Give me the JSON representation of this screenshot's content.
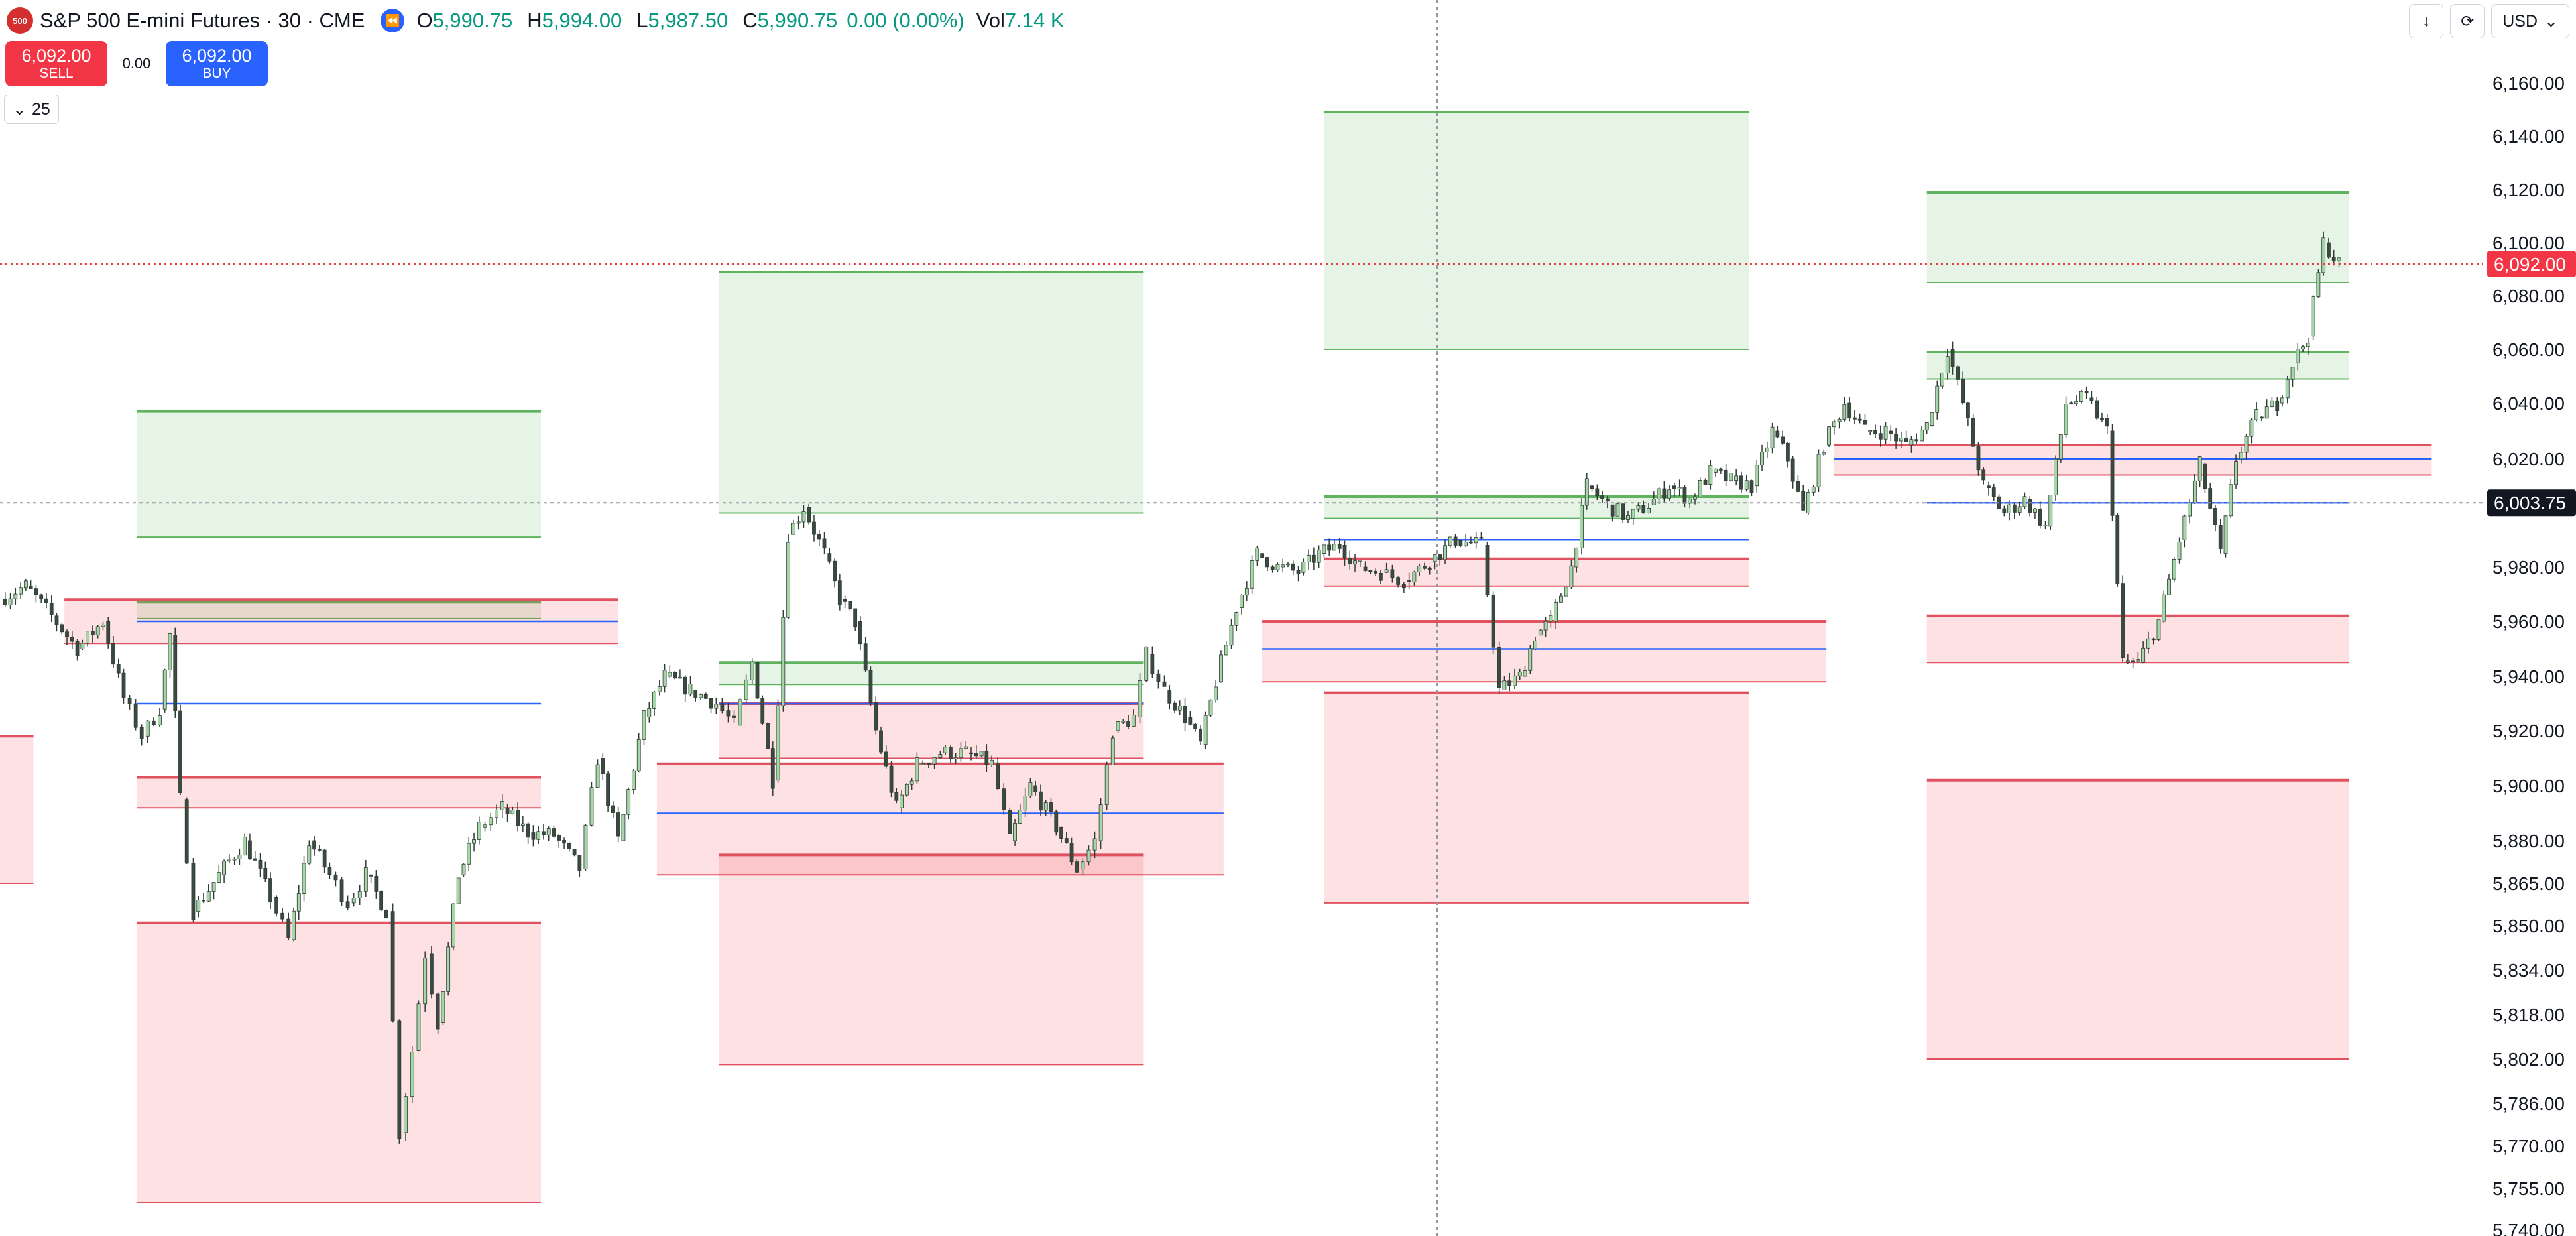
{
  "header": {
    "logo_text": "500",
    "title": "S&P 500 E-mini Futures · 30 · CME",
    "ohlc": [
      {
        "label": "O",
        "value": "5,990.75"
      },
      {
        "label": "H",
        "value": "5,994.00"
      },
      {
        "label": "L",
        "value": "5,987.50"
      },
      {
        "label": "C",
        "value": "5,990.75"
      }
    ],
    "change": "0.00 (0.00%)",
    "volume_label": "Vol",
    "volume_value": "7.14 K",
    "up_color": "#089981"
  },
  "trade": {
    "sell_price": "6,092.00",
    "sell_label": "SELL",
    "spread": "0.00",
    "buy_price": "6,092.00",
    "buy_label": "BUY"
  },
  "interval_selector": {
    "value": "25",
    "icon": "chevron-down-icon"
  },
  "toolbar": {
    "currency": "USD",
    "icons": [
      "arrow-down-icon",
      "refresh-icon",
      "chevron-down-icon"
    ]
  },
  "chart_data": {
    "type": "candlestick",
    "ylim": [
      5740,
      6170
    ],
    "y_tick_labels": [
      {
        "value": 6160,
        "label": "6,160.00"
      },
      {
        "value": 6140,
        "label": "6,140.00"
      },
      {
        "value": 6120,
        "label": "6,120.00"
      },
      {
        "value": 6100,
        "label": "6,100.00"
      },
      {
        "value": 6080,
        "label": "6,080.00"
      },
      {
        "value": 6060,
        "label": "6,060.00"
      },
      {
        "value": 6040,
        "label": "6,040.00"
      },
      {
        "value": 6020,
        "label": "6,020.00"
      },
      {
        "value": 5980,
        "label": "5,980.00"
      },
      {
        "value": 5960,
        "label": "5,960.00"
      },
      {
        "value": 5940,
        "label": "5,940.00"
      },
      {
        "value": 5920,
        "label": "5,920.00"
      },
      {
        "value": 5900,
        "label": "5,900.00"
      },
      {
        "value": 5880,
        "label": "5,880.00"
      },
      {
        "value": 5865,
        "label": "5,865.00"
      },
      {
        "value": 5850,
        "label": "5,850.00"
      },
      {
        "value": 5834,
        "label": "5,834.00"
      },
      {
        "value": 5818,
        "label": "5,818.00"
      },
      {
        "value": 5802,
        "label": "5,802.00"
      },
      {
        "value": 5786,
        "label": "5,786.00"
      },
      {
        "value": 5770,
        "label": "5,770.00"
      },
      {
        "value": 5755,
        "label": "5,755.00"
      },
      {
        "value": 5740,
        "label": "5,740.00"
      }
    ],
    "last_price": {
      "value": 6092,
      "label": "6,092.00",
      "color": "#f23645"
    },
    "crosshair_price": {
      "value": 6003.75,
      "label": "6,003.75",
      "color": "#131722"
    },
    "zones": [
      {
        "kind": "supply",
        "from": 6037,
        "to": 5991,
        "start": 0.053,
        "end": 0.21
      },
      {
        "kind": "supply",
        "from": 5967,
        "to": 5961,
        "start": 0.053,
        "end": 0.21
      },
      {
        "kind": "demand",
        "from": 5968,
        "to": 5952,
        "start": 0.025,
        "end": 0.24
      },
      {
        "kind": "demand",
        "from": 5903,
        "to": 5892,
        "start": 0.053,
        "end": 0.21
      },
      {
        "kind": "demand",
        "from": 5851,
        "to": 5750,
        "start": 0.053,
        "end": 0.21
      },
      {
        "kind": "demand",
        "from": 5918,
        "to": 5865,
        "start": 0.0,
        "end": 0.013
      },
      {
        "kind": "supply",
        "from": 6089,
        "to": 6000,
        "start": 0.279,
        "end": 0.444
      },
      {
        "kind": "supply",
        "from": 5945,
        "to": 5937,
        "start": 0.279,
        "end": 0.444
      },
      {
        "kind": "demand",
        "from": 5930,
        "to": 5910,
        "start": 0.279,
        "end": 0.444
      },
      {
        "kind": "demand",
        "from": 5908,
        "to": 5868,
        "start": 0.255,
        "end": 0.475
      },
      {
        "kind": "demand",
        "from": 5875,
        "to": 5800,
        "start": 0.279,
        "end": 0.444
      },
      {
        "kind": "supply",
        "from": 6149,
        "to": 6060,
        "start": 0.514,
        "end": 0.679
      },
      {
        "kind": "supply",
        "from": 6006,
        "to": 5998,
        "start": 0.514,
        "end": 0.679
      },
      {
        "kind": "demand",
        "from": 5983,
        "to": 5973,
        "start": 0.514,
        "end": 0.679
      },
      {
        "kind": "demand",
        "from": 5960,
        "to": 5938,
        "start": 0.49,
        "end": 0.709
      },
      {
        "kind": "demand",
        "from": 5934,
        "to": 5858,
        "start": 0.514,
        "end": 0.679
      },
      {
        "kind": "supply",
        "from": 6119,
        "to": 6085,
        "start": 0.748,
        "end": 0.912
      },
      {
        "kind": "supply",
        "from": 6059,
        "to": 6049,
        "start": 0.748,
        "end": 0.912
      },
      {
        "kind": "demand",
        "from": 6025,
        "to": 6014,
        "start": 0.712,
        "end": 0.944
      },
      {
        "kind": "demand",
        "from": 5962,
        "to": 5945,
        "start": 0.748,
        "end": 0.912
      },
      {
        "kind": "demand",
        "from": 5902,
        "to": 5802,
        "start": 0.748,
        "end": 0.912
      }
    ],
    "mid_lines": [
      {
        "value": 5960,
        "start": 0.053,
        "end": 0.24
      },
      {
        "value": 5930,
        "start": 0.053,
        "end": 0.21
      },
      {
        "value": 5930,
        "start": 0.279,
        "end": 0.444
      },
      {
        "value": 5890,
        "start": 0.255,
        "end": 0.475
      },
      {
        "value": 5950,
        "start": 0.49,
        "end": 0.709
      },
      {
        "value": 5990,
        "start": 0.514,
        "end": 0.679
      },
      {
        "value": 6020,
        "start": 0.712,
        "end": 0.944
      },
      {
        "value": 6003.75,
        "start": 0.748,
        "end": 0.912
      }
    ],
    "price_path": [
      [
        0.0,
        5968
      ],
      [
        0.01,
        5973
      ],
      [
        0.02,
        5962
      ],
      [
        0.03,
        5950
      ],
      [
        0.04,
        5960
      ],
      [
        0.048,
        5932
      ],
      [
        0.055,
        5918
      ],
      [
        0.062,
        5928
      ],
      [
        0.066,
        5955
      ],
      [
        0.07,
        5895
      ],
      [
        0.075,
        5855
      ],
      [
        0.085,
        5868
      ],
      [
        0.095,
        5880
      ],
      [
        0.105,
        5860
      ],
      [
        0.112,
        5845
      ],
      [
        0.12,
        5880
      ],
      [
        0.128,
        5868
      ],
      [
        0.135,
        5858
      ],
      [
        0.142,
        5868
      ],
      [
        0.15,
        5855
      ],
      [
        0.155,
        5775
      ],
      [
        0.16,
        5805
      ],
      [
        0.165,
        5840
      ],
      [
        0.17,
        5815
      ],
      [
        0.178,
        5868
      ],
      [
        0.186,
        5885
      ],
      [
        0.195,
        5892
      ],
      [
        0.205,
        5883
      ],
      [
        0.215,
        5882
      ],
      [
        0.225,
        5870
      ],
      [
        0.232,
        5910
      ],
      [
        0.24,
        5880
      ],
      [
        0.25,
        5925
      ],
      [
        0.258,
        5940
      ],
      [
        0.268,
        5935
      ],
      [
        0.278,
        5930
      ],
      [
        0.285,
        5922
      ],
      [
        0.292,
        5945
      ],
      [
        0.3,
        5902
      ],
      [
        0.306,
        5992
      ],
      [
        0.312,
        6002
      ],
      [
        0.32,
        5985
      ],
      [
        0.326,
        5968
      ],
      [
        0.332,
        5960
      ],
      [
        0.34,
        5920
      ],
      [
        0.348,
        5892
      ],
      [
        0.356,
        5908
      ],
      [
        0.365,
        5912
      ],
      [
        0.375,
        5912
      ],
      [
        0.385,
        5908
      ],
      [
        0.392,
        5880
      ],
      [
        0.4,
        5900
      ],
      [
        0.41,
        5885
      ],
      [
        0.418,
        5870
      ],
      [
        0.425,
        5880
      ],
      [
        0.432,
        5920
      ],
      [
        0.44,
        5925
      ],
      [
        0.445,
        5948
      ],
      [
        0.452,
        5935
      ],
      [
        0.46,
        5925
      ],
      [
        0.466,
        5915
      ],
      [
        0.472,
        5938
      ],
      [
        0.48,
        5965
      ],
      [
        0.488,
        5985
      ],
      [
        0.496,
        5980
      ],
      [
        0.504,
        5978
      ],
      [
        0.512,
        5985
      ],
      [
        0.52,
        5988
      ],
      [
        0.528,
        5980
      ],
      [
        0.536,
        5978
      ],
      [
        0.545,
        5975
      ],
      [
        0.555,
        5982
      ],
      [
        0.565,
        5990
      ],
      [
        0.575,
        5988
      ],
      [
        0.582,
        5935
      ],
      [
        0.59,
        5940
      ],
      [
        0.596,
        5955
      ],
      [
        0.602,
        5960
      ],
      [
        0.61,
        5980
      ],
      [
        0.616,
        6010
      ],
      [
        0.624,
        6003
      ],
      [
        0.632,
        5998
      ],
      [
        0.64,
        6003
      ],
      [
        0.648,
        6010
      ],
      [
        0.656,
        6005
      ],
      [
        0.664,
        6015
      ],
      [
        0.672,
        6012
      ],
      [
        0.68,
        6010
      ],
      [
        0.688,
        6030
      ],
      [
        0.694,
        6020
      ],
      [
        0.7,
        6000
      ],
      [
        0.708,
        6025
      ],
      [
        0.716,
        6040
      ],
      [
        0.724,
        6030
      ],
      [
        0.732,
        6030
      ],
      [
        0.74,
        6025
      ],
      [
        0.748,
        6032
      ],
      [
        0.756,
        6060
      ],
      [
        0.762,
        6040
      ],
      [
        0.77,
        6010
      ],
      [
        0.778,
        6000
      ],
      [
        0.786,
        6005
      ],
      [
        0.794,
        5995
      ],
      [
        0.802,
        6040
      ],
      [
        0.81,
        6042
      ],
      [
        0.818,
        6030
      ],
      [
        0.824,
        5945
      ],
      [
        0.83,
        5945
      ],
      [
        0.838,
        5960
      ],
      [
        0.846,
        5990
      ],
      [
        0.854,
        6018
      ],
      [
        0.862,
        5985
      ],
      [
        0.868,
        6020
      ],
      [
        0.876,
        6035
      ],
      [
        0.884,
        6040
      ],
      [
        0.89,
        6055
      ],
      [
        0.896,
        6065
      ],
      [
        0.902,
        6100
      ],
      [
        0.908,
        6092
      ]
    ]
  }
}
